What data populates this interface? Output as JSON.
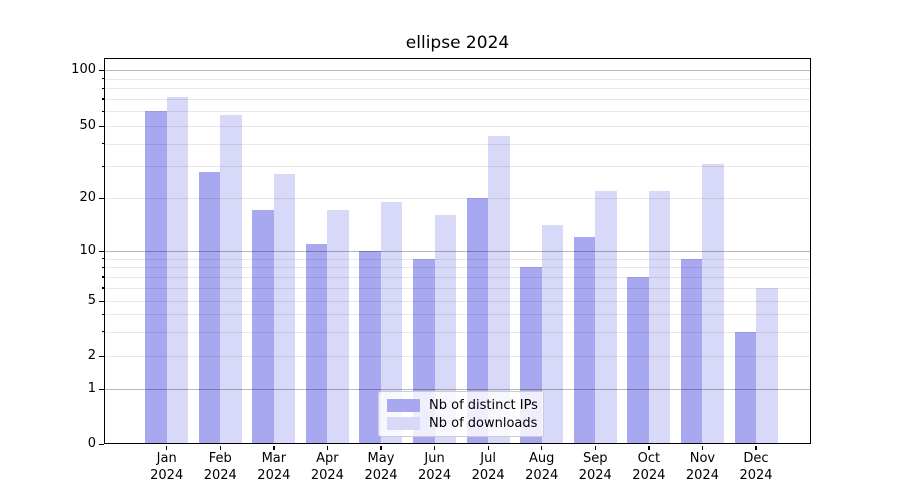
{
  "chart_data": {
    "type": "bar",
    "title": "ellipse 2024",
    "categories": [
      "Jan 2024",
      "Feb 2024",
      "Mar 2024",
      "Apr 2024",
      "May 2024",
      "Jun 2024",
      "Jul 2024",
      "Aug 2024",
      "Sep 2024",
      "Oct 2024",
      "Nov 2024",
      "Dec 2024"
    ],
    "month_labels": [
      "Jan",
      "Feb",
      "Mar",
      "Apr",
      "May",
      "Jun",
      "Jul",
      "Aug",
      "Sep",
      "Oct",
      "Nov",
      "Dec"
    ],
    "year_label": "2024",
    "series": [
      {
        "name": "Nb of distinct IPs",
        "color": "#a8a8f0",
        "values": [
          60,
          28,
          17,
          11,
          10,
          9,
          20,
          8,
          12,
          7,
          9,
          3
        ]
      },
      {
        "name": "Nb of downloads",
        "color": "#d8d8f8",
        "values": [
          72,
          57,
          27,
          17,
          19,
          16,
          44,
          14,
          22,
          22,
          31,
          6
        ]
      }
    ],
    "y_axis": {
      "scale": "symlog",
      "ticks": [
        0,
        1,
        2,
        5,
        10,
        20,
        50,
        100
      ],
      "major_gridlines": [
        1,
        10,
        100
      ],
      "minor_gridlines": [
        2,
        3,
        4,
        5,
        6,
        7,
        8,
        9,
        20,
        30,
        40,
        50,
        60,
        70,
        80,
        90
      ],
      "ylim": [
        0,
        116
      ]
    },
    "grid": true,
    "legend_position": "inside-bottom-center",
    "xlabel": "",
    "ylabel": ""
  }
}
